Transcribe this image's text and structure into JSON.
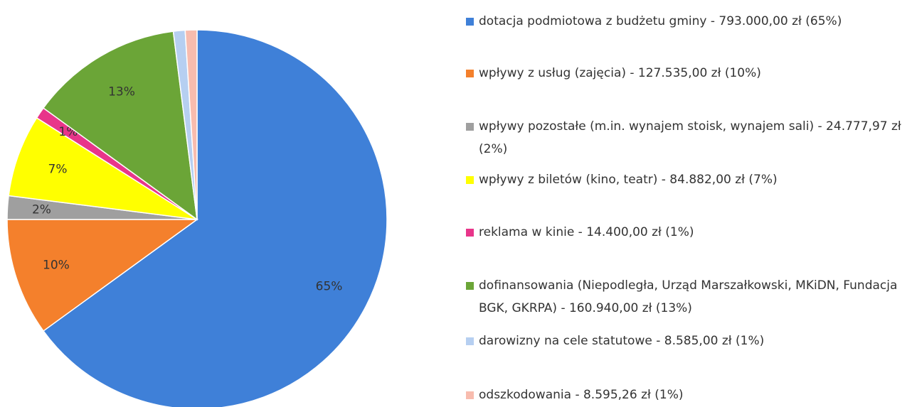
{
  "chart_data": {
    "type": "pie",
    "series": [
      {
        "name": "dotacja podmiotowa z budżetu gminy - 793.000,00 zł (65%)",
        "color": "#3f80d8"
      },
      {
        "name": "wpływy z usług (zajęcia) - 127.535,00 zł (10%)",
        "color": "#f4802c"
      },
      {
        "name": "wpływy pozostałe (m.in. wynajem stoisk, wynajem sali) - 24.777,97 zł (2%)",
        "color": "#9f9f9f"
      },
      {
        "name": "wpływy z biletów (kino, teatr) - 84.882,00 zł (7%)",
        "color": "#ffff00"
      },
      {
        "name": "reklama w kinie - 14.400,00 zł (1%)",
        "color": "#e8358a"
      },
      {
        "name": "dofinansowania (Niepodległa, Urząd Marszałkowski, MKiDN, Fundacja BGK, GKRPA) - 160.940,00 zł (13%)",
        "color": "#6ba537"
      },
      {
        "name": "darowizny na cele statutowe - 8.585,00 zł (1%)",
        "color": "#b6cff1"
      },
      {
        "name": "odszkodowania - 8.595,26 zł (1%)",
        "color": "#f8bcae"
      }
    ],
    "values": [
      65,
      10,
      2,
      7,
      1,
      13,
      1,
      1
    ],
    "value_labels": [
      "65%",
      "10%",
      "2%",
      "7%",
      "1%",
      "13%",
      null,
      null
    ],
    "legend": "right"
  }
}
